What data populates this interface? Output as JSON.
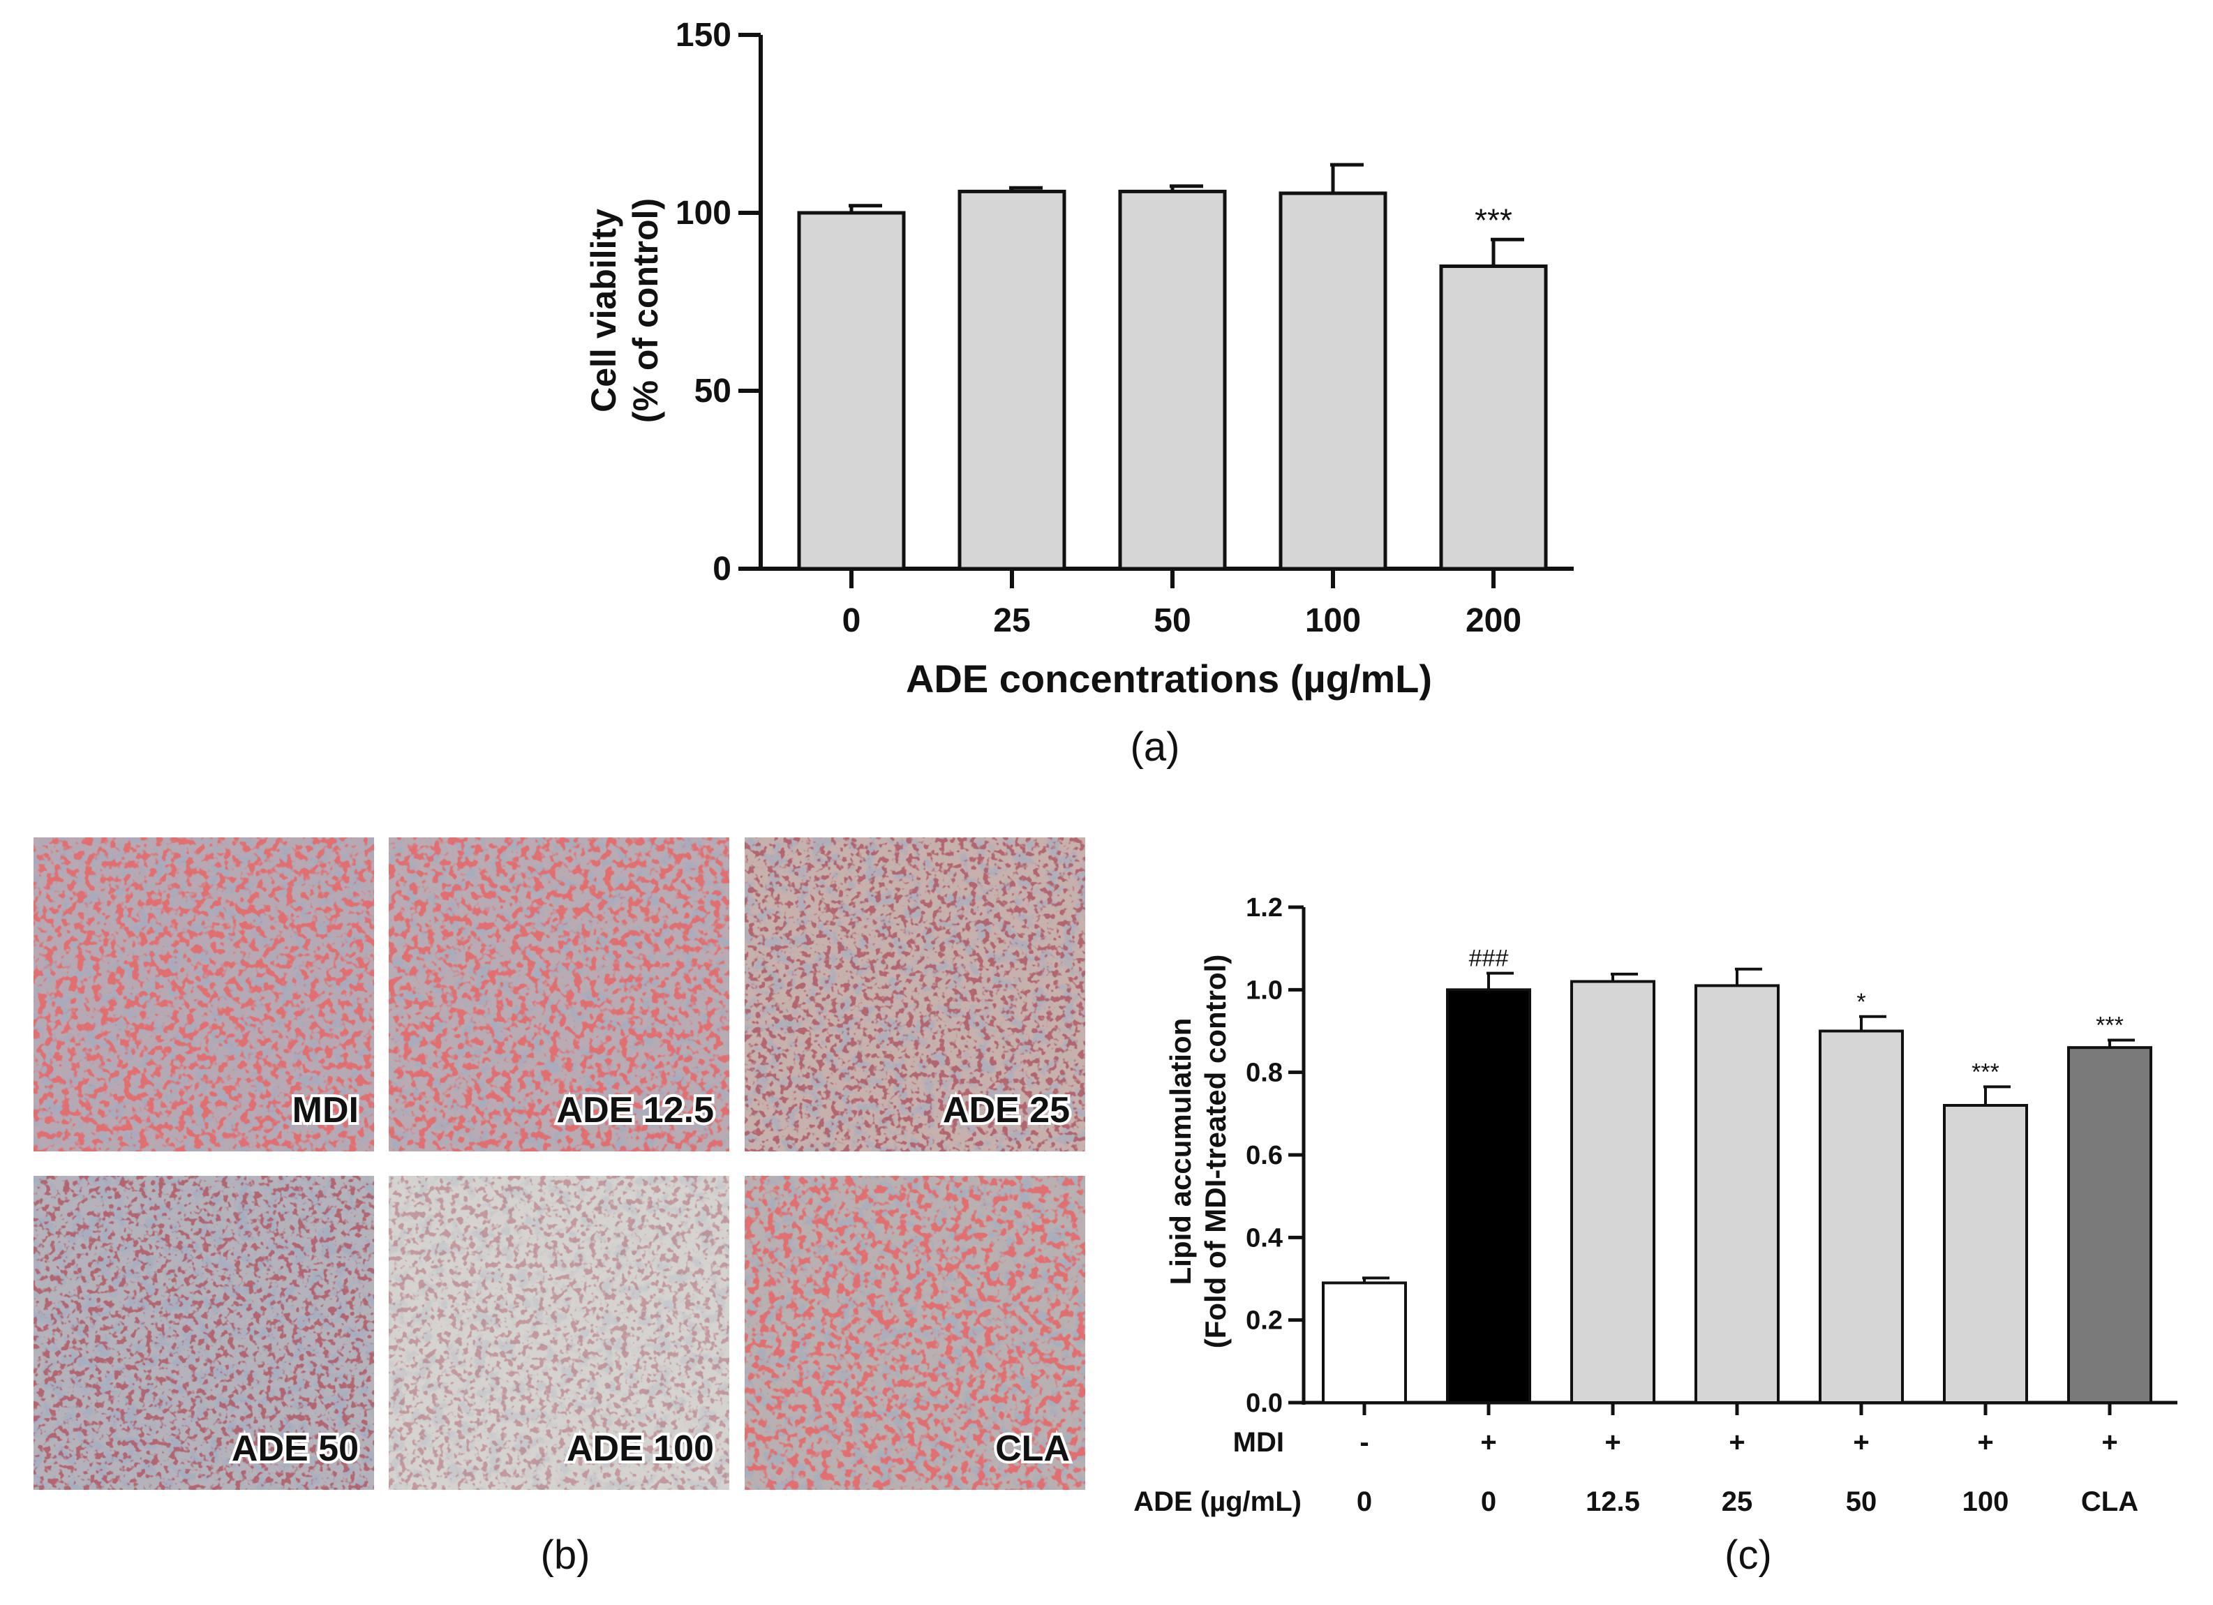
{
  "chart_data": [
    {
      "panel": "(a)",
      "type": "bar",
      "categories": [
        "0",
        "25",
        "50",
        "100",
        "200"
      ],
      "values": [
        100,
        106,
        106,
        105.5,
        85
      ],
      "errors": [
        2,
        1,
        1.5,
        8,
        7.5
      ],
      "annotations": [
        "",
        "",
        "",
        "",
        "***"
      ],
      "ylabel_line1": "Cell viability",
      "ylabel_line2": "(% of control)",
      "xlabel": "ADE concentrations (µg/mL)",
      "ylim": [
        0,
        150
      ],
      "yticks": [
        "0",
        "50",
        "100",
        "150"
      ],
      "bar_color": "#d6d6d6",
      "grid": false
    },
    {
      "panel": "(c)",
      "type": "bar",
      "categories": [
        "0",
        "0",
        "12.5",
        "25",
        "50",
        "100",
        "CLA"
      ],
      "values": [
        0.29,
        1.0,
        1.02,
        1.01,
        0.9,
        0.72,
        0.86
      ],
      "errors": [
        0.012,
        0.04,
        0.018,
        0.04,
        0.035,
        0.045,
        0.018
      ],
      "annotations": [
        "",
        "###",
        "",
        "",
        "*",
        "***",
        "***"
      ],
      "bar_colors": [
        "#ffffff",
        "#000000",
        "#d6d6d6",
        "#d6d6d6",
        "#d6d6d6",
        "#d6d6d6",
        "#7a7a7a"
      ],
      "row_labels": [
        "MDI",
        "ADE (µg/mL)"
      ],
      "mdi_row": [
        "-",
        "+",
        "+",
        "+",
        "+",
        "+",
        "+"
      ],
      "ylabel_line1": "Lipid accumulation",
      "ylabel_line2": "(Fold of MDI-treated control)",
      "ylim": [
        0,
        1.2
      ],
      "yticks": [
        "0.0",
        "0.2",
        "0.4",
        "0.6",
        "0.8",
        "1.0",
        "1.2"
      ],
      "grid": false
    }
  ],
  "images": {
    "panel": "(b)",
    "labels": [
      "MDI",
      "ADE 12.5",
      "ADE 25",
      "ADE 50",
      "ADE 100",
      "CLA"
    ]
  },
  "captions": [
    "(a)",
    "(b)",
    "(c)"
  ]
}
